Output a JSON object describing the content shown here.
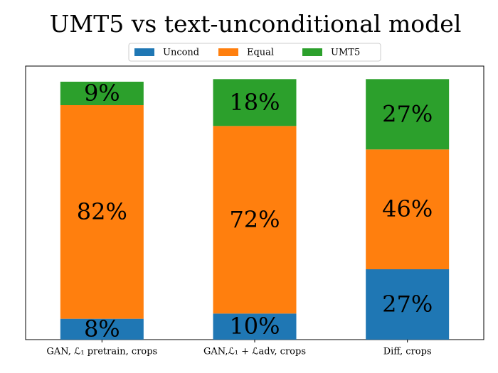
{
  "chart_data": {
    "type": "stacked_bar",
    "title": "UMT5 vs text-unconditional model",
    "categories": [
      "GAN, ℒ₁ pretrain, crops",
      "GAN,ℒ₁ + ℒadv, crops",
      "Diff, crops"
    ],
    "series": [
      {
        "name": "Uncond",
        "color": "#1f77b4",
        "values": [
          8,
          10,
          27
        ],
        "value_labels": [
          "8%",
          "10%",
          "27%"
        ]
      },
      {
        "name": "Equal",
        "color": "#ff7f0e",
        "values": [
          82,
          72,
          46
        ],
        "value_labels": [
          "82%",
          "72%",
          "46%"
        ]
      },
      {
        "name": "UMT5",
        "color": "#2ca02c",
        "values": [
          9,
          18,
          27
        ],
        "value_labels": [
          "9%",
          "18%",
          "27%"
        ]
      }
    ],
    "ylim": [
      0,
      105
    ],
    "legend": "upper center"
  }
}
